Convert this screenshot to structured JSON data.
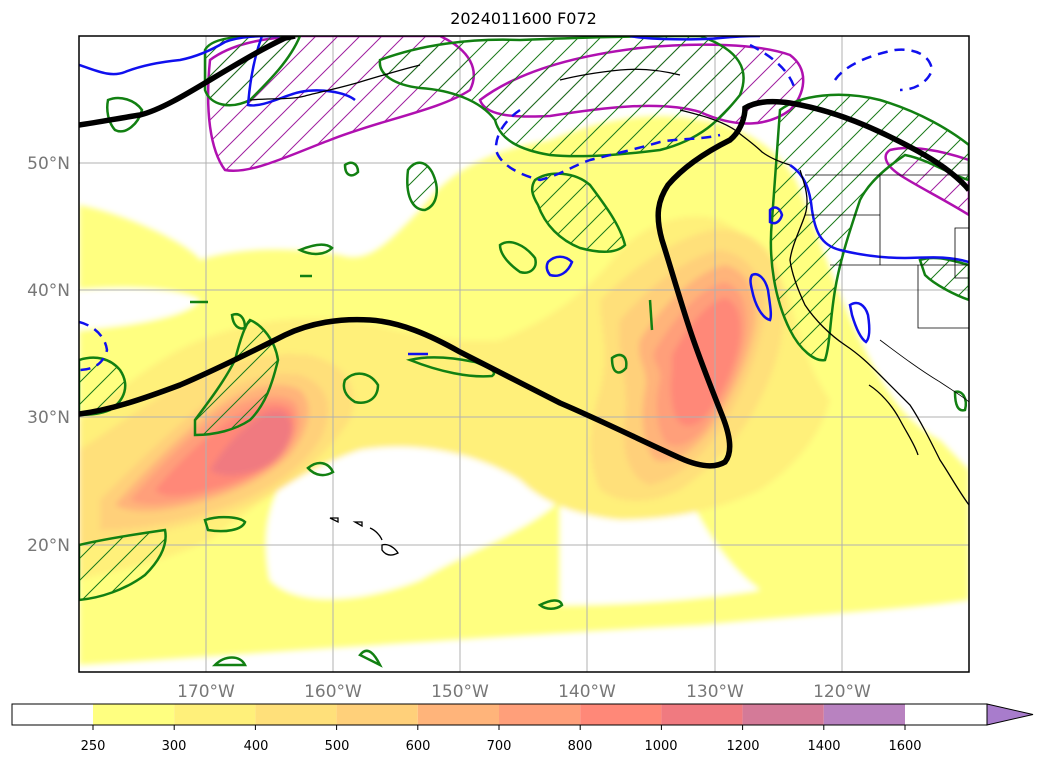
{
  "title": "2024011600 F072",
  "map": {
    "projection": "lat-lon",
    "lon_range": [
      -180,
      -110
    ],
    "lat_range": [
      10,
      60
    ],
    "lat_labels": [
      "50°N",
      "40°N",
      "30°N",
      "20°N"
    ],
    "lon_labels": [
      "170°W",
      "160°W",
      "150°W",
      "140°W",
      "130°W",
      "120°W"
    ],
    "gridlines": true,
    "features": [
      "ivt-filled-contours",
      "black-contour-line",
      "green-hatched-contours",
      "magenta-hatched-contours",
      "blue-solid-contours",
      "blue-dashed-contours",
      "coastlines",
      "state-borders"
    ]
  },
  "colorbar": {
    "tick_labels": [
      "250",
      "300",
      "400",
      "500",
      "600",
      "700",
      "800",
      "1000",
      "1200",
      "1400",
      "1600"
    ],
    "levels": [
      250,
      300,
      400,
      500,
      600,
      700,
      800,
      1000,
      1200,
      1400,
      1600
    ],
    "extend": "max",
    "colors": [
      "#ffffff",
      "#ffff80",
      "#fff07a",
      "#ffe07a",
      "#ffd07a",
      "#ffb47a",
      "#ff9f7a",
      "#ff8878",
      "#f07a80",
      "#d47a98",
      "#b882c0",
      "#a87ccc"
    ]
  }
}
